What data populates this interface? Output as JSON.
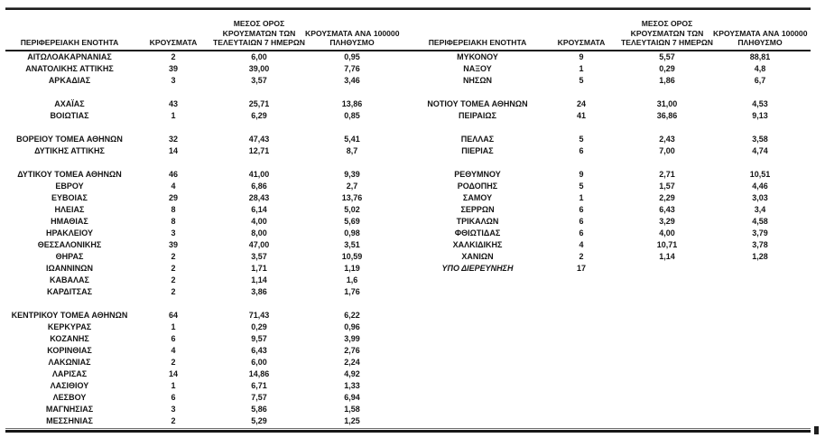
{
  "table": {
    "headers": {
      "region": "ΠΕΡΙΦΕΡΕΙΑΚΗ ΕΝΟΤΗΤΑ",
      "cases": "ΚΡΟΥΣΜΑΤΑ",
      "avg7_lines": [
        "ΜΕΣΟΣ ΟΡΟΣ",
        "ΚΡΟΥΣΜΑΤΩΝ ΤΩΝ",
        "ΤΕΛΕΥΤΑΙΩΝ 7 ΗΜΕΡΩΝ"
      ],
      "per100k_lines": [
        "ΚΡΟΥΣΜΑΤΑ ΑΝΑ 100000",
        "ΠΛΗΘΥΣΜΟ"
      ]
    },
    "left_rows": [
      {
        "region": "ΑΙΤΩΛΟΑΚΑΡΝΑΝΙΑΣ",
        "cases": "2",
        "avg7": "6,00",
        "per100k": "0,95"
      },
      {
        "region": "ΑΝΑΤΟΛΙΚΗΣ ΑΤΤΙΚΗΣ",
        "cases": "39",
        "avg7": "39,00",
        "per100k": "7,76"
      },
      {
        "region": "ΑΡΚΑΔΙΑΣ",
        "cases": "3",
        "avg7": "3,57",
        "per100k": "3,46"
      },
      null,
      {
        "region": "ΑΧΑΪΑΣ",
        "cases": "43",
        "avg7": "25,71",
        "per100k": "13,86"
      },
      {
        "region": "ΒΟΙΩΤΙΑΣ",
        "cases": "1",
        "avg7": "6,29",
        "per100k": "0,85"
      },
      null,
      {
        "region": "ΒΟΡΕΙΟΥ ΤΟΜΕΑ ΑΘΗΝΩΝ",
        "cases": "32",
        "avg7": "47,43",
        "per100k": "5,41"
      },
      {
        "region": "ΔΥΤΙΚΗΣ ΑΤΤΙΚΗΣ",
        "cases": "14",
        "avg7": "12,71",
        "per100k": "8,7"
      },
      null,
      {
        "region": "ΔΥΤΙΚΟΥ ΤΟΜΕΑ ΑΘΗΝΩΝ",
        "cases": "46",
        "avg7": "41,00",
        "per100k": "9,39"
      },
      {
        "region": "ΕΒΡΟΥ",
        "cases": "4",
        "avg7": "6,86",
        "per100k": "2,7"
      },
      {
        "region": "ΕΥΒΟΙΑΣ",
        "cases": "29",
        "avg7": "28,43",
        "per100k": "13,76"
      },
      {
        "region": "ΗΛΕΙΑΣ",
        "cases": "8",
        "avg7": "6,14",
        "per100k": "5,02"
      },
      {
        "region": "ΗΜΑΘΙΑΣ",
        "cases": "8",
        "avg7": "4,00",
        "per100k": "5,69"
      },
      {
        "region": "ΗΡΑΚΛΕΙΟΥ",
        "cases": "3",
        "avg7": "8,00",
        "per100k": "0,98"
      },
      {
        "region": "ΘΕΣΣΑΛΟΝΙΚΗΣ",
        "cases": "39",
        "avg7": "47,00",
        "per100k": "3,51"
      },
      {
        "region": "ΘΗΡΑΣ",
        "cases": "2",
        "avg7": "3,57",
        "per100k": "10,59"
      },
      {
        "region": "ΙΩΑΝΝΙΝΩΝ",
        "cases": "2",
        "avg7": "1,71",
        "per100k": "1,19"
      },
      {
        "region": "ΚΑΒΑΛΑΣ",
        "cases": "2",
        "avg7": "1,14",
        "per100k": "1,6"
      },
      {
        "region": "ΚΑΡΔΙΤΣΑΣ",
        "cases": "2",
        "avg7": "3,86",
        "per100k": "1,76"
      },
      null,
      {
        "region": "ΚΕΝΤΡΙΚΟΥ ΤΟΜΕΑ ΑΘΗΝΩΝ",
        "cases": "64",
        "avg7": "71,43",
        "per100k": "6,22"
      },
      {
        "region": "ΚΕΡΚΥΡΑΣ",
        "cases": "1",
        "avg7": "0,29",
        "per100k": "0,96"
      },
      {
        "region": "ΚΟΖΑΝΗΣ",
        "cases": "6",
        "avg7": "9,57",
        "per100k": "3,99"
      },
      {
        "region": "ΚΟΡΙΝΘΙΑΣ",
        "cases": "4",
        "avg7": "6,43",
        "per100k": "2,76"
      },
      {
        "region": "ΛΑΚΩΝΙΑΣ",
        "cases": "2",
        "avg7": "6,00",
        "per100k": "2,24"
      },
      {
        "region": "ΛΑΡΙΣΑΣ",
        "cases": "14",
        "avg7": "14,86",
        "per100k": "4,92"
      },
      {
        "region": "ΛΑΣΙΘΙΟΥ",
        "cases": "1",
        "avg7": "6,71",
        "per100k": "1,33"
      },
      {
        "region": "ΛΕΣΒΟΥ",
        "cases": "6",
        "avg7": "7,57",
        "per100k": "6,94"
      },
      {
        "region": "ΜΑΓΝΗΣΙΑΣ",
        "cases": "3",
        "avg7": "5,86",
        "per100k": "1,58"
      },
      {
        "region": "ΜΕΣΣΗΝΙΑΣ",
        "cases": "2",
        "avg7": "5,29",
        "per100k": "1,25"
      }
    ],
    "right_rows": [
      {
        "region": "ΜΥΚΟΝΟΥ",
        "cases": "9",
        "avg7": "5,57",
        "per100k": "88,81"
      },
      {
        "region": "ΝΑΞΟΥ",
        "cases": "1",
        "avg7": "0,29",
        "per100k": "4,8"
      },
      {
        "region": "ΝΗΣΩΝ",
        "cases": "5",
        "avg7": "1,86",
        "per100k": "6,7"
      },
      null,
      {
        "region": "ΝΟΤΙΟΥ ΤΟΜΕΑ ΑΘΗΝΩΝ",
        "cases": "24",
        "avg7": "31,00",
        "per100k": "4,53"
      },
      {
        "region": "ΠΕΙΡΑΙΩΣ",
        "cases": "41",
        "avg7": "36,86",
        "per100k": "9,13"
      },
      null,
      {
        "region": "ΠΕΛΛΑΣ",
        "cases": "5",
        "avg7": "2,43",
        "per100k": "3,58"
      },
      {
        "region": "ΠΙΕΡΙΑΣ",
        "cases": "6",
        "avg7": "7,00",
        "per100k": "4,74"
      },
      null,
      {
        "region": "ΡΕΘΥΜΝΟΥ",
        "cases": "9",
        "avg7": "2,71",
        "per100k": "10,51"
      },
      {
        "region": "ΡΟΔΟΠΗΣ",
        "cases": "5",
        "avg7": "1,57",
        "per100k": "4,46"
      },
      {
        "region": "ΣΑΜΟΥ",
        "cases": "1",
        "avg7": "2,29",
        "per100k": "3,03"
      },
      {
        "region": "ΣΕΡΡΩΝ",
        "cases": "6",
        "avg7": "6,43",
        "per100k": "3,4"
      },
      {
        "region": "ΤΡΙΚΑΛΩΝ",
        "cases": "6",
        "avg7": "3,29",
        "per100k": "4,58"
      },
      {
        "region": "ΦΘΙΩΤΙΔΑΣ",
        "cases": "6",
        "avg7": "4,00",
        "per100k": "3,79"
      },
      {
        "region": "ΧΑΛΚΙΔΙΚΗΣ",
        "cases": "4",
        "avg7": "10,71",
        "per100k": "3,78"
      },
      {
        "region": "ΧΑΝΙΩΝ",
        "cases": "2",
        "avg7": "1,14",
        "per100k": "1,28"
      },
      {
        "region": "ΥΠΟ ΔΙΕΡΕΥΝΗΣΗ",
        "cases": "17",
        "avg7": "",
        "per100k": "",
        "italic": true
      },
      null,
      null,
      null,
      null,
      null,
      null,
      null,
      null,
      null,
      null,
      null,
      null,
      null
    ],
    "colors": {
      "text": "#151515",
      "rule": "#1b1b1b",
      "background": "#ffffff"
    }
  }
}
